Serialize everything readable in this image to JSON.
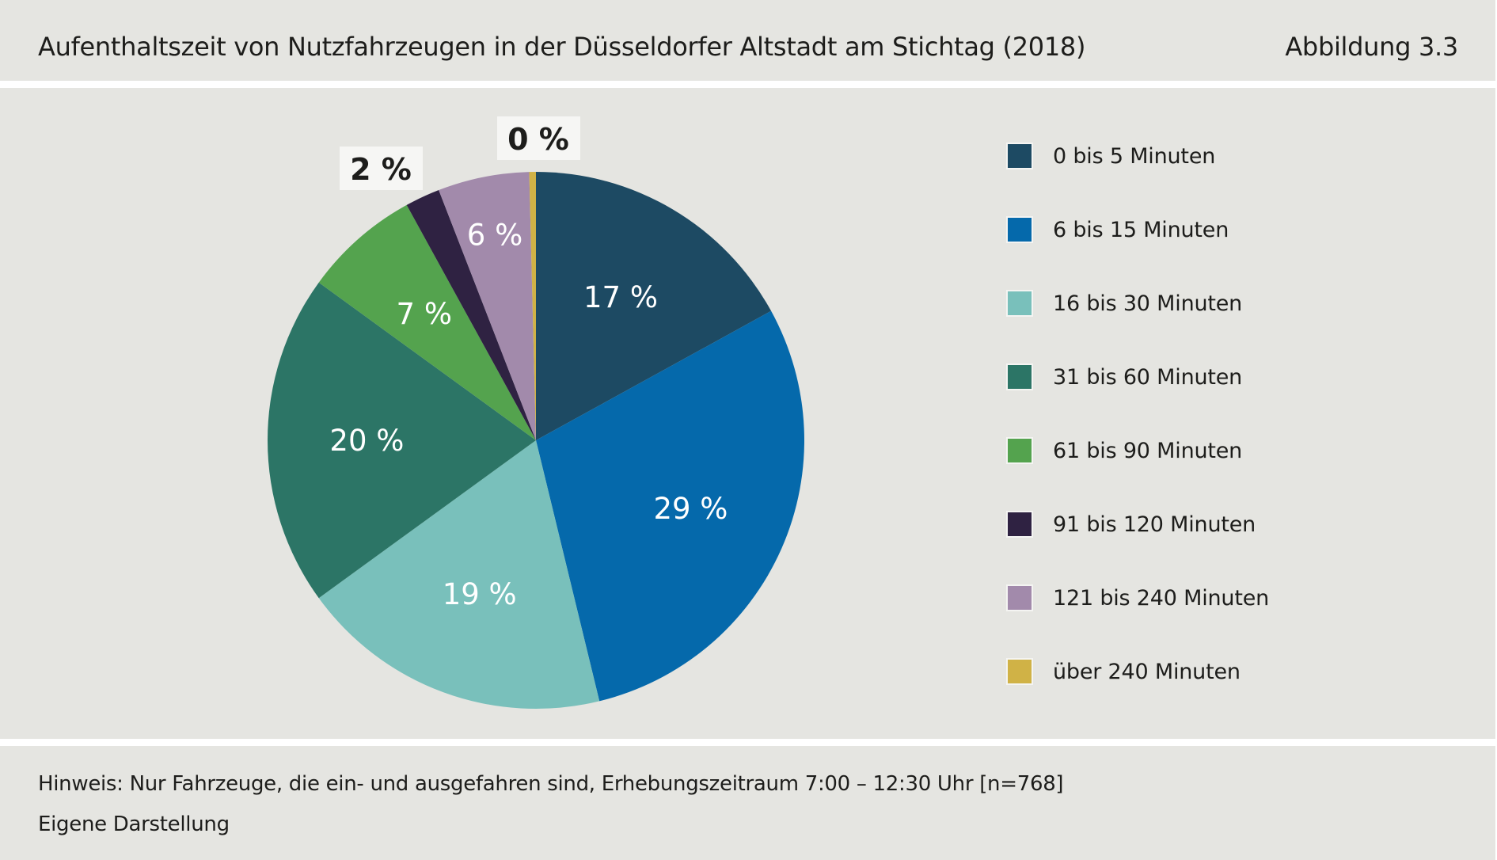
{
  "header": {
    "title": "Aufenthaltszeit von Nutzfahrzeugen in der Düsseldorfer Altstadt am Stichtag (2018)",
    "figure_number": "Abbildung 3.3"
  },
  "chart_data": {
    "type": "pie",
    "title": "Aufenthaltszeit von Nutzfahrzeugen in der Düsseldorfer Altstadt am Stichtag (2018)",
    "start_angle": "12 o'clock",
    "direction": "clockwise",
    "categories": [
      "0 bis 5 Minuten",
      "6 bis 15 Minuten",
      "16 bis 30 Minuten",
      "31 bis 60 Minuten",
      "61 bis 90 Minuten",
      "91 bis 120 Minuten",
      "121 bis 240 Minuten",
      "über 240 Minuten"
    ],
    "values": [
      17.0,
      29.2,
      18.8,
      20.0,
      7.0,
      2.1,
      5.5,
      0.4
    ],
    "data_labels": [
      "17 %",
      "29 %",
      "19 %",
      "20 %",
      "7 %",
      "2 %",
      "6 %",
      "0 %"
    ],
    "label_style": [
      "inside",
      "inside",
      "inside",
      "inside",
      "inside",
      "outside-box",
      "inside",
      "outside-box"
    ],
    "colors": [
      "#1d4a63",
      "#0569ab",
      "#79c0bb",
      "#2c7566",
      "#54a34e",
      "#2f2242",
      "#a28aab",
      "#d0b246"
    ],
    "legend_position": "right",
    "unit": "%"
  },
  "footer": {
    "note": "Hinweis: Nur Fahrzeuge, die ein- und ausgefahren sind, Erhebungszeitraum 7:00 – 12:30 Uhr [n=768]",
    "source": "Eigene Darstellung"
  }
}
